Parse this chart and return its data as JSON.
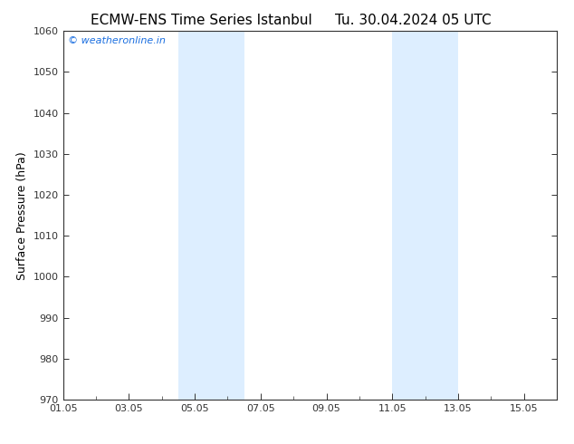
{
  "title": "ECMW-ENS Time Series Istanbul",
  "title2": "Tu. 30.04.2024 05 UTC",
  "ylabel": "Surface Pressure (hPa)",
  "ylim": [
    970,
    1060
  ],
  "yticks": [
    970,
    980,
    990,
    1000,
    1010,
    1020,
    1030,
    1040,
    1050,
    1060
  ],
  "xlim": [
    0,
    15
  ],
  "xtick_labels": [
    "01.05",
    "03.05",
    "05.05",
    "07.05",
    "09.05",
    "11.05",
    "13.05",
    "15.05"
  ],
  "xtick_positions": [
    0,
    2,
    4,
    6,
    8,
    10,
    12,
    14
  ],
  "shaded_bands": [
    {
      "x_start": 3.5,
      "x_end": 5.5
    },
    {
      "x_start": 10.0,
      "x_end": 12.0
    }
  ],
  "shaded_color": "#ddeeff",
  "background_color": "#ffffff",
  "plot_bg_color": "#ffffff",
  "spine_color": "#333333",
  "tick_color": "#333333",
  "watermark_text": "© weatheronline.in",
  "watermark_color": "#1a6ee0",
  "title_fontsize": 11,
  "axis_label_fontsize": 9,
  "tick_fontsize": 8,
  "watermark_fontsize": 8
}
